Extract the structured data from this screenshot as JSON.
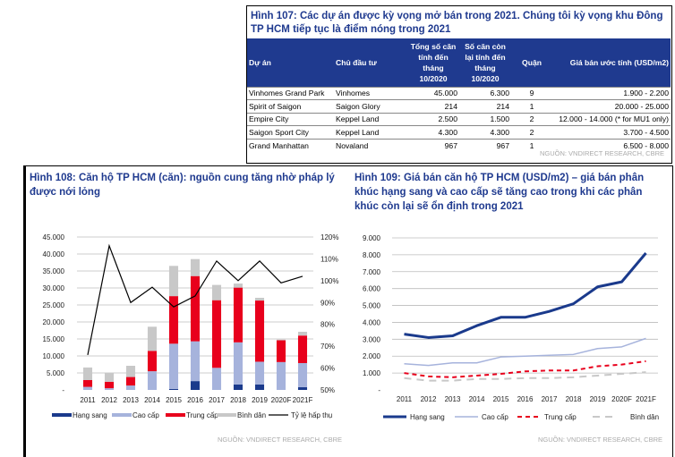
{
  "fig107": {
    "title": "Hình 107: Các dự án được kỳ vọng mở bán trong 2021. Chúng tôi kỳ vọng khu Đông TP HCM tiếp tục là điểm nóng trong 2021",
    "headers": [
      "Dự án",
      "Chủ đầu tư",
      "Tổng số căn tính đến tháng 10/2020",
      "Số căn còn lại tính đến tháng 10/2020",
      "Quận",
      "Giá bán ước tính (USD/m2)"
    ],
    "rows": [
      [
        "Vinhomes Grand Park",
        "Vinhomes",
        "45.000",
        "6.300",
        "9",
        "1.900 - 2.200"
      ],
      [
        "Spirit of Saigon",
        "Saigon Glory",
        "214",
        "214",
        "1",
        "20.000 - 25.000"
      ],
      [
        "Empire City",
        "Keppel Land",
        "2.500",
        "1.500",
        "2",
        "12.000 - 14.000 (* for MU1 only)"
      ],
      [
        "Saigon Sport City",
        "Keppel Land",
        "4.300",
        "4.300",
        "2",
        "3.700 - 4.500"
      ],
      [
        "Grand Manhattan",
        "Novaland",
        "967",
        "967",
        "1",
        "6.500 - 8.000"
      ]
    ],
    "source": "NGUỒN: VNDIRECT RESEARCH, CBRE"
  },
  "chart_data": [
    {
      "type": "bar",
      "stacked": true,
      "title": "Hình 108: Căn hộ TP HCM (căn): nguồn cung tăng nhờ pháp lý được nới lỏng",
      "categories": [
        "2011",
        "2012",
        "2013",
        "2014",
        "2015",
        "2016",
        "2017",
        "2018",
        "2019",
        "2020F",
        "2021F"
      ],
      "ylim": [
        0,
        45000
      ],
      "yticks": [
        "-",
        "5.000",
        "10.000",
        "15.000",
        "20.000",
        "25.000",
        "30.000",
        "35.000",
        "40.000",
        "45.000"
      ],
      "y2lim": [
        50,
        120
      ],
      "y2ticks": [
        "50%",
        "60%",
        "70%",
        "80%",
        "90%",
        "100%",
        "110%",
        "120%"
      ],
      "series": [
        {
          "name": "Hạng sang",
          "color": "#1a3a8c",
          "values": [
            0,
            0,
            0,
            0,
            300,
            2600,
            0,
            1600,
            1600,
            0,
            800
          ]
        },
        {
          "name": "Cao cấp",
          "color": "#a6b3dc",
          "values": [
            900,
            500,
            1300,
            5500,
            13300,
            11700,
            6500,
            12400,
            6700,
            8200,
            7100
          ]
        },
        {
          "name": "Trung cấp",
          "color": "#e8001c",
          "values": [
            2000,
            1900,
            2500,
            6000,
            14000,
            19200,
            19900,
            16100,
            18000,
            6400,
            8100
          ]
        },
        {
          "name": "Bình dân",
          "color": "#c8c8c8",
          "values": [
            3700,
            2600,
            3300,
            7100,
            8900,
            5000,
            4500,
            1200,
            800,
            200,
            1100
          ]
        }
      ],
      "line": {
        "name": "Tỷ lệ hấp thụ",
        "color": "#000000",
        "axis": "right",
        "values": [
          66,
          116,
          90,
          97,
          88,
          93,
          109,
          100,
          109,
          99,
          102
        ]
      },
      "legend": "bottom",
      "grid": true,
      "source": "NGUỒN: VNDIRECT RESEARCH, CBRE"
    },
    {
      "type": "line",
      "title": "Hình 109: Giá bán căn hộ TP HCM (USD/m2) – giá bán phân khúc hạng sang và cao cấp sẽ tăng cao trong khi các phân khúc còn lại sẽ ổn định trong 2021",
      "categories": [
        "2011",
        "2012",
        "2013",
        "2014",
        "2015",
        "2016",
        "2017",
        "2018",
        "2019",
        "2020F",
        "2021F"
      ],
      "ylim": [
        0,
        9000
      ],
      "yticks": [
        "-",
        "1.000",
        "2.000",
        "3.000",
        "4.000",
        "5.000",
        "6.000",
        "7.000",
        "8.000",
        "9.000"
      ],
      "series": [
        {
          "name": "Hạng sang",
          "color": "#1a3a8c",
          "values": [
            3300,
            3100,
            3200,
            3800,
            4300,
            4300,
            4650,
            5100,
            6100,
            6400,
            8100
          ]
        },
        {
          "name": "Cao cấp",
          "color": "#a6b3dc",
          "values": [
            1550,
            1450,
            1600,
            1600,
            1950,
            2000,
            2050,
            2100,
            2450,
            2550,
            3050
          ]
        },
        {
          "name": "Trung cấp",
          "color": "#e8001c",
          "values": [
            1000,
            800,
            750,
            850,
            950,
            1100,
            1150,
            1150,
            1400,
            1500,
            1700
          ]
        },
        {
          "name": "Bình dân",
          "color": "#c8c8c8",
          "values": [
            700,
            550,
            550,
            650,
            650,
            700,
            700,
            750,
            850,
            950,
            1050
          ]
        }
      ],
      "legend": "bottom",
      "grid": true,
      "source": "NGUỒN: VNDIRECT RESEARCH, CBRE"
    }
  ]
}
